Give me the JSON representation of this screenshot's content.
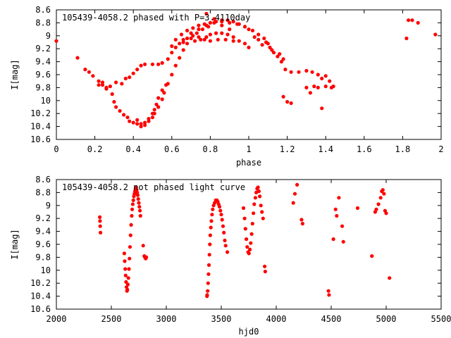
{
  "chart_data": [
    {
      "type": "scatter",
      "title": "105439-4058.2 phased with P=3.4110day",
      "xlabel": "phase",
      "ylabel": "I[mag]",
      "xlim": [
        0,
        2
      ],
      "ylim": [
        8.6,
        10.6
      ],
      "y_inverted": true,
      "grid": false,
      "marker_color": "#ff0000",
      "xticks": [
        "0",
        "0.2",
        "0.4",
        "0.6",
        "0.8",
        "1",
        "1.2",
        "1.4",
        "1.6",
        "1.8",
        "2"
      ],
      "yticks": [
        "8.6",
        "8.8",
        "9",
        "9.2",
        "9.4",
        "9.6",
        "9.8",
        "10",
        "10.2",
        "10.4",
        "10.6"
      ],
      "series": [
        {
          "points": [
            [
              0.0,
              9.08
            ],
            [
              0.11,
              9.34
            ],
            [
              0.15,
              9.52
            ],
            [
              0.17,
              9.56
            ],
            [
              0.19,
              9.62
            ],
            [
              0.22,
              9.7
            ],
            [
              0.24,
              9.76
            ],
            [
              0.26,
              9.82
            ],
            [
              0.28,
              9.78
            ],
            [
              0.31,
              9.72
            ],
            [
              0.34,
              9.74
            ],
            [
              0.36,
              9.66
            ],
            [
              0.38,
              9.64
            ],
            [
              0.4,
              9.58
            ],
            [
              0.42,
              9.52
            ],
            [
              0.44,
              9.46
            ],
            [
              0.46,
              9.44
            ],
            [
              0.5,
              9.44
            ],
            [
              0.53,
              9.44
            ],
            [
              0.55,
              9.42
            ],
            [
              0.58,
              9.36
            ],
            [
              0.6,
              9.26
            ],
            [
              0.62,
              9.18
            ],
            [
              0.64,
              9.12
            ],
            [
              0.66,
              9.06
            ],
            [
              0.7,
              8.96
            ],
            [
              0.74,
              8.9
            ],
            [
              0.78,
              8.84
            ],
            [
              0.82,
              8.8
            ],
            [
              0.86,
              8.78
            ],
            [
              0.9,
              8.8
            ],
            [
              0.94,
              8.82
            ],
            [
              0.98,
              8.86
            ],
            [
              1.02,
              8.92
            ],
            [
              1.05,
              8.98
            ],
            [
              1.08,
              9.04
            ],
            [
              1.1,
              9.12
            ],
            [
              1.12,
              9.22
            ],
            [
              1.15,
              9.32
            ],
            [
              1.17,
              9.4
            ],
            [
              1.19,
              9.52
            ],
            [
              1.22,
              9.56
            ],
            [
              1.26,
              9.56
            ],
            [
              1.3,
              9.54
            ],
            [
              1.33,
              9.56
            ],
            [
              1.36,
              9.6
            ],
            [
              1.38,
              9.66
            ],
            [
              1.4,
              9.62
            ],
            [
              1.42,
              9.7
            ],
            [
              1.44,
              9.78
            ],
            [
              0.22,
              9.76
            ],
            [
              0.24,
              9.72
            ],
            [
              0.26,
              9.8
            ],
            [
              0.29,
              9.9
            ],
            [
              0.3,
              10.02
            ],
            [
              0.31,
              10.1
            ],
            [
              0.33,
              10.16
            ],
            [
              0.35,
              10.22
            ],
            [
              0.37,
              10.26
            ],
            [
              0.38,
              10.32
            ],
            [
              0.4,
              10.34
            ],
            [
              0.42,
              10.36
            ],
            [
              0.44,
              10.36
            ],
            [
              0.46,
              10.38
            ],
            [
              0.48,
              10.32
            ],
            [
              0.5,
              10.26
            ],
            [
              0.51,
              10.2
            ],
            [
              0.53,
              10.1
            ],
            [
              0.55,
              9.98
            ],
            [
              0.56,
              9.88
            ],
            [
              0.58,
              9.74
            ],
            [
              0.6,
              9.6
            ],
            [
              0.62,
              9.46
            ],
            [
              0.64,
              9.34
            ],
            [
              0.66,
              9.22
            ],
            [
              0.68,
              9.12
            ],
            [
              0.7,
              9.04
            ],
            [
              0.73,
              8.96
            ],
            [
              0.76,
              8.9
            ],
            [
              0.79,
              8.86
            ],
            [
              0.42,
              10.3
            ],
            [
              0.44,
              10.4
            ],
            [
              0.46,
              10.34
            ],
            [
              0.48,
              10.28
            ],
            [
              0.5,
              10.2
            ],
            [
              0.51,
              10.14
            ],
            [
              0.52,
              10.06
            ],
            [
              0.53,
              9.96
            ],
            [
              0.55,
              9.84
            ],
            [
              0.57,
              9.76
            ],
            [
              0.6,
              9.16
            ],
            [
              0.62,
              9.06
            ],
            [
              0.65,
              8.98
            ],
            [
              0.68,
              8.92
            ],
            [
              0.71,
              8.88
            ],
            [
              0.74,
              8.84
            ],
            [
              0.77,
              8.82
            ],
            [
              0.8,
              8.8
            ],
            [
              0.83,
              8.78
            ],
            [
              0.86,
              8.76
            ],
            [
              0.89,
              8.76
            ],
            [
              0.92,
              8.78
            ],
            [
              0.95,
              8.82
            ],
            [
              0.98,
              8.86
            ],
            [
              1.0,
              8.9
            ],
            [
              0.72,
              9.08
            ],
            [
              0.75,
              9.06
            ],
            [
              0.78,
              9.02
            ],
            [
              0.8,
              8.98
            ],
            [
              0.83,
              8.96
            ],
            [
              0.86,
              8.96
            ],
            [
              0.89,
              8.98
            ],
            [
              0.92,
              9.02
            ],
            [
              0.95,
              9.08
            ],
            [
              0.98,
              9.12
            ],
            [
              1.0,
              9.18
            ],
            [
              0.66,
              9.1
            ],
            [
              0.68,
              9.04
            ],
            [
              0.71,
              9.0
            ],
            [
              0.74,
              9.02
            ],
            [
              0.77,
              9.06
            ],
            [
              0.8,
              9.08
            ],
            [
              0.84,
              9.06
            ],
            [
              0.88,
              9.06
            ],
            [
              0.92,
              9.08
            ],
            [
              0.78,
              8.66
            ],
            [
              0.82,
              8.74
            ],
            [
              0.86,
              8.84
            ],
            [
              0.9,
              8.9
            ],
            [
              1.03,
              9.02
            ],
            [
              1.05,
              9.06
            ],
            [
              1.07,
              9.14
            ],
            [
              1.09,
              9.1
            ],
            [
              1.11,
              9.18
            ],
            [
              1.13,
              9.26
            ],
            [
              1.16,
              9.28
            ],
            [
              1.18,
              9.36
            ],
            [
              1.18,
              9.94
            ],
            [
              1.2,
              10.02
            ],
            [
              1.22,
              10.04
            ],
            [
              1.3,
              9.8
            ],
            [
              1.32,
              9.88
            ],
            [
              1.34,
              9.78
            ],
            [
              1.36,
              9.8
            ],
            [
              1.38,
              10.12
            ],
            [
              1.4,
              9.78
            ],
            [
              1.43,
              9.8
            ],
            [
              1.82,
              9.04
            ],
            [
              1.83,
              8.76
            ],
            [
              1.85,
              8.76
            ],
            [
              1.88,
              8.8
            ],
            [
              1.97,
              8.98
            ]
          ]
        }
      ]
    },
    {
      "type": "scatter",
      "title": "105439-4058.2 not phased light curve",
      "xlabel": "hjd0",
      "ylabel": "I[mag]",
      "xlim": [
        2000,
        5500
      ],
      "ylim": [
        8.6,
        10.6
      ],
      "y_inverted": true,
      "grid": false,
      "marker_color": "#ff0000",
      "xticks": [
        "2000",
        "2500",
        "3000",
        "3500",
        "4000",
        "4500",
        "5000",
        "5500"
      ],
      "yticks": [
        "8.6",
        "8.8",
        "9",
        "9.2",
        "9.4",
        "9.6",
        "9.8",
        "10",
        "10.2",
        "10.4",
        "10.6"
      ],
      "series": [
        {
          "points": [
            [
              2395,
              9.18
            ],
            [
              2397,
              9.24
            ],
            [
              2399,
              9.32
            ],
            [
              2401,
              9.42
            ],
            [
              2618,
              9.74
            ],
            [
              2622,
              9.86
            ],
            [
              2626,
              9.98
            ],
            [
              2630,
              10.08
            ],
            [
              2634,
              10.18
            ],
            [
              2638,
              10.26
            ],
            [
              2642,
              10.32
            ],
            [
              2646,
              10.3
            ],
            [
              2650,
              10.22
            ],
            [
              2655,
              10.12
            ],
            [
              2660,
              9.98
            ],
            [
              2665,
              9.82
            ],
            [
              2670,
              9.64
            ],
            [
              2675,
              9.46
            ],
            [
              2680,
              9.3
            ],
            [
              2685,
              9.16
            ],
            [
              2690,
              9.06
            ],
            [
              2695,
              8.98
            ],
            [
              2700,
              8.92
            ],
            [
              2705,
              8.86
            ],
            [
              2710,
              8.82
            ],
            [
              2715,
              8.78
            ],
            [
              2720,
              8.74
            ],
            [
              2725,
              8.72
            ],
            [
              2730,
              8.76
            ],
            [
              2735,
              8.8
            ],
            [
              2740,
              8.84
            ],
            [
              2745,
              8.9
            ],
            [
              2750,
              8.96
            ],
            [
              2755,
              9.02
            ],
            [
              2760,
              9.08
            ],
            [
              2765,
              9.16
            ],
            [
              2790,
              9.62
            ],
            [
              2800,
              9.78
            ],
            [
              2806,
              9.8
            ],
            [
              2812,
              9.82
            ],
            [
              2818,
              9.8
            ],
            [
              3372,
              10.38
            ],
            [
              3376,
              10.32
            ],
            [
              3380,
              10.2
            ],
            [
              3384,
              10.06
            ],
            [
              3388,
              9.92
            ],
            [
              3392,
              9.76
            ],
            [
              3396,
              9.6
            ],
            [
              3400,
              9.46
            ],
            [
              3405,
              9.34
            ],
            [
              3410,
              9.24
            ],
            [
              3416,
              9.14
            ],
            [
              3422,
              9.06
            ],
            [
              3430,
              9.0
            ],
            [
              3440,
              8.96
            ],
            [
              3450,
              8.92
            ],
            [
              3460,
              8.92
            ],
            [
              3468,
              8.94
            ],
            [
              3476,
              8.98
            ],
            [
              3484,
              9.02
            ],
            [
              3492,
              9.08
            ],
            [
              3500,
              9.14
            ],
            [
              3508,
              9.22
            ],
            [
              3516,
              9.32
            ],
            [
              3524,
              9.42
            ],
            [
              3532,
              9.54
            ],
            [
              3540,
              9.62
            ],
            [
              3370,
              10.4
            ],
            [
              3555,
              9.72
            ],
            [
              3702,
              9.04
            ],
            [
              3712,
              9.2
            ],
            [
              3720,
              9.36
            ],
            [
              3728,
              9.52
            ],
            [
              3736,
              9.64
            ],
            [
              3744,
              9.72
            ],
            [
              3752,
              9.74
            ],
            [
              3760,
              9.68
            ],
            [
              3768,
              9.58
            ],
            [
              3776,
              9.44
            ],
            [
              3784,
              9.28
            ],
            [
              3792,
              9.12
            ],
            [
              3800,
              8.98
            ],
            [
              3810,
              8.88
            ],
            [
              3818,
              8.8
            ],
            [
              3826,
              8.74
            ],
            [
              3834,
              8.72
            ],
            [
              3842,
              8.78
            ],
            [
              3850,
              8.86
            ],
            [
              3860,
              9.0
            ],
            [
              3870,
              9.1
            ],
            [
              3880,
              9.2
            ],
            [
              3895,
              9.94
            ],
            [
              3900,
              10.02
            ],
            [
              4155,
              8.96
            ],
            [
              4170,
              8.82
            ],
            [
              4190,
              8.68
            ],
            [
              4230,
              9.22
            ],
            [
              4240,
              9.28
            ],
            [
              4475,
              10.32
            ],
            [
              4480,
              10.38
            ],
            [
              4520,
              9.52
            ],
            [
              4540,
              9.06
            ],
            [
              4550,
              9.16
            ],
            [
              4570,
              8.88
            ],
            [
              4600,
              9.32
            ],
            [
              4610,
              9.56
            ],
            [
              4740,
              9.04
            ],
            [
              4870,
              9.78
            ],
            [
              4900,
              9.1
            ],
            [
              4910,
              9.06
            ],
            [
              4930,
              8.98
            ],
            [
              4950,
              8.88
            ],
            [
              4960,
              8.78
            ],
            [
              4970,
              8.76
            ],
            [
              4980,
              8.82
            ],
            [
              4990,
              9.08
            ],
            [
              5000,
              9.12
            ],
            [
              5030,
              10.12
            ]
          ]
        }
      ]
    }
  ]
}
